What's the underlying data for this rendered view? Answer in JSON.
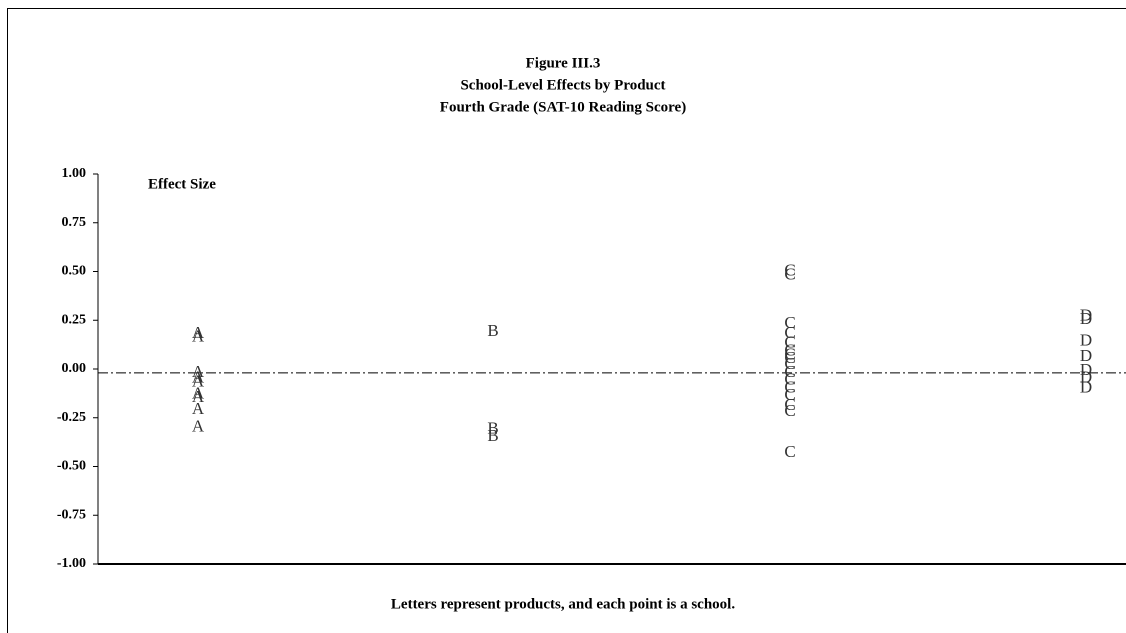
{
  "chart_data": {
    "type": "scatter",
    "title": "Figure III.3",
    "subtitle": [
      "School-Level Effects by Product",
      "Fourth Grade (SAT-10 Reading Score)"
    ],
    "y_label": "Effect Size",
    "footnote": "Letters represent products, and each point is a school.",
    "series": [
      {
        "name": "A",
        "color": "#333333",
        "values": [
          0.18,
          0.16,
          -0.02,
          -0.05,
          -0.07,
          -0.13,
          -0.15,
          -0.21,
          -0.3
        ]
      },
      {
        "name": "B",
        "color": "#333333",
        "values": [
          0.19,
          -0.31,
          -0.35
        ]
      },
      {
        "name": "C",
        "color": "#333333",
        "values": [
          0.5,
          0.48,
          0.23,
          0.18,
          0.13,
          0.09,
          0.07,
          0.05,
          0.02,
          -0.02,
          -0.06,
          -0.1,
          -0.14,
          -0.19,
          -0.22,
          -0.43
        ]
      },
      {
        "name": "D",
        "color": "#333333",
        "values": [
          0.27,
          0.25,
          0.14,
          0.06,
          -0.01,
          -0.05,
          -0.1
        ]
      }
    ],
    "reference_line": -0.02,
    "ylim": [
      -1,
      1
    ],
    "yticks": [
      {
        "value": -1,
        "label": "-1.00"
      },
      {
        "value": -0.75,
        "label": "-0.75"
      },
      {
        "value": -0.5,
        "label": "-0.50"
      },
      {
        "value": -0.25,
        "label": "-0.25"
      },
      {
        "value": 0,
        "label": "0.00"
      },
      {
        "value": 0.25,
        "label": "0.25"
      },
      {
        "value": 0.5,
        "label": "0.50"
      },
      {
        "value": 0.75,
        "label": "0.75"
      },
      {
        "value": 1,
        "label": "1.00"
      }
    ]
  }
}
